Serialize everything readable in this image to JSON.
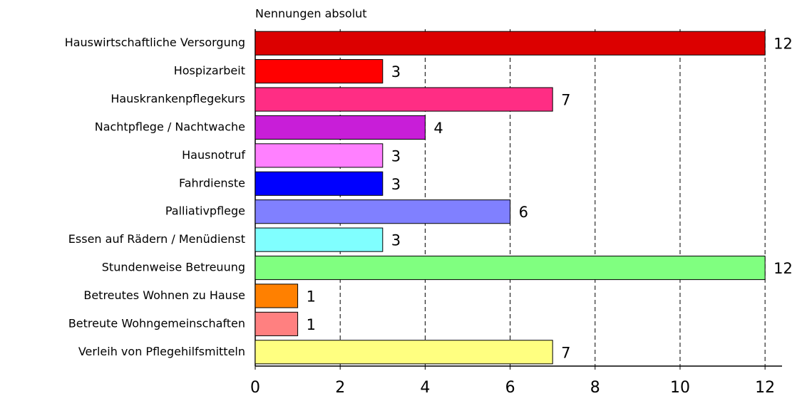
{
  "chart_data": {
    "type": "bar",
    "orientation": "horizontal",
    "title": "Nennungen absolut",
    "categories": [
      "Hauswirtschaftliche Versorgung",
      "Hospizarbeit",
      "Hauskrankenpflegekurs",
      "Nachtpflege / Nachtwache",
      "Hausnotruf",
      "Fahrdienste",
      "Palliativpflege",
      "Essen auf Rädern / Menüdienst",
      "Stundenweise Betreuung",
      "Betreutes Wohnen zu Hause",
      "Betreute Wohngemeinschaften",
      "Verleih von Pflegehilfsmitteln"
    ],
    "values": [
      12,
      3,
      7,
      4,
      3,
      3,
      6,
      3,
      12,
      1,
      1,
      7
    ],
    "colors": [
      "#dc0000",
      "#ff0000",
      "#ff2d84",
      "#c81ed8",
      "#ff80ff",
      "#0000ff",
      "#8080ff",
      "#80ffff",
      "#80ff80",
      "#ff8000",
      "#ff8080",
      "#ffff80"
    ],
    "xlim": [
      0,
      12.4
    ],
    "xticks": [
      0,
      2,
      4,
      6,
      8,
      10,
      12
    ],
    "grid": true
  }
}
